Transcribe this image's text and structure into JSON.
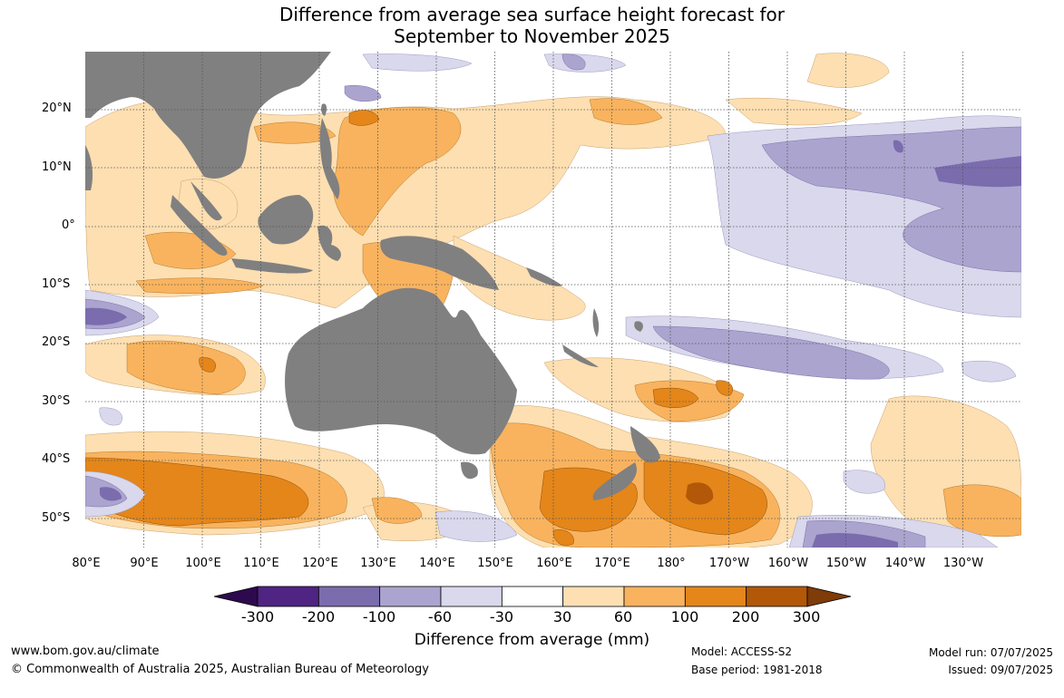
{
  "title_line1": "Difference from average sea surface height forecast for",
  "title_line2": "September to November 2025",
  "lat_labels": [
    "20°N",
    "10°N",
    "0°",
    "10°S",
    "20°S",
    "30°S",
    "40°S",
    "50°S"
  ],
  "lon_labels": [
    "80°E",
    "90°E",
    "100°E",
    "110°E",
    "120°E",
    "130°E",
    "140°E",
    "150°E",
    "160°E",
    "170°E",
    "180°",
    "170°W",
    "160°W",
    "150°W",
    "140°W",
    "130°W"
  ],
  "colorbar": {
    "ticks": [
      "-300",
      "-200",
      "-100",
      "-60",
      "-30",
      "30",
      "60",
      "100",
      "200",
      "300"
    ],
    "colors": [
      "#4f2482",
      "#7b6cad",
      "#aba4cf",
      "#d9d8ec",
      "#ffffff",
      "#fddfb1",
      "#f9b35e",
      "#e4861a",
      "#b25808"
    ],
    "under_color": "#2d0a4e",
    "over_color": "#7f3b08",
    "label": "Difference from average (mm)"
  },
  "colors": {
    "land": "#808080",
    "gridline": "#555555"
  },
  "footer": {
    "website": "www.bom.gov.au/climate",
    "copyright": "© Commonwealth of Australia 2025, Australian Bureau of Meteorology",
    "model": "Model: ACCESS-S2",
    "base_period": "Base period: 1981-2018",
    "model_run": "Model run: 07/07/2025",
    "issued": "Issued: 09/07/2025"
  }
}
